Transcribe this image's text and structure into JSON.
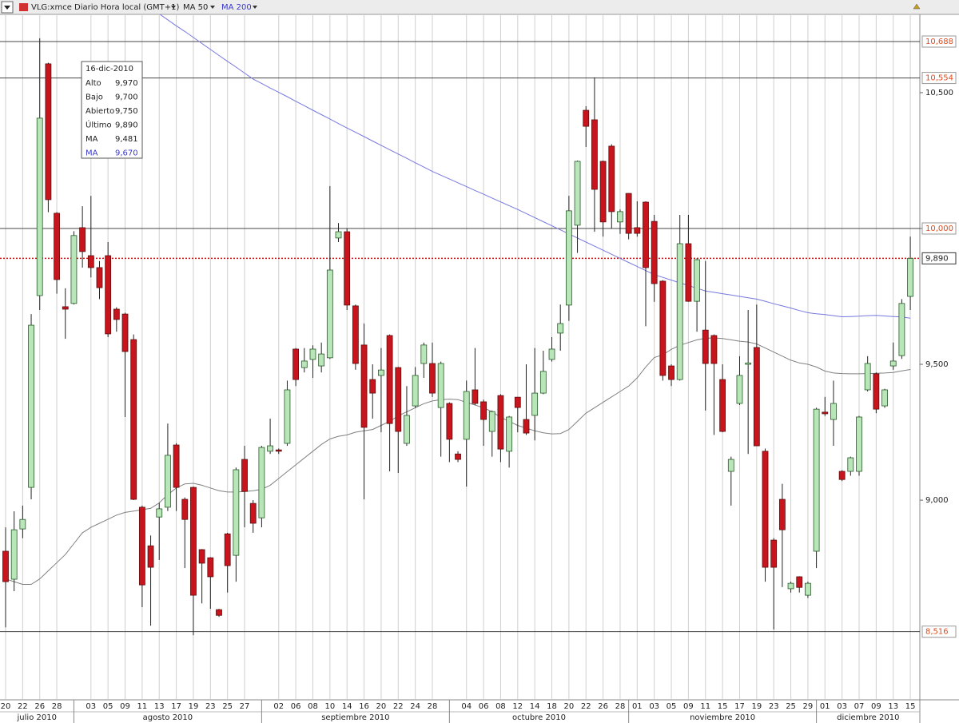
{
  "toolbar": {
    "symbol": "VLG:xmce Diario Hora local (GMT+1)"
  },
  "tooltip": {
    "date": "16-dic-2010",
    "rows": [
      {
        "label": "Alto",
        "value": "9,970"
      },
      {
        "label": "Bajo",
        "value": "9,700"
      },
      {
        "label": "Abierto",
        "value": "9,750"
      },
      {
        "label": "Último",
        "value": "9,890"
      },
      {
        "label": "MA",
        "value": "9,481"
      },
      {
        "label": "MA",
        "value": "9,670",
        "color": "#3a3ac8"
      }
    ]
  },
  "chart_data": {
    "type": "candlestick",
    "months": [
      "julio 2010",
      "agosto 2010",
      "septiembre 2010",
      "octubre 2010",
      "noviembre 2010",
      "diciembre 2010"
    ],
    "categories": [
      "20",
      null,
      "22",
      null,
      "26",
      null,
      "28",
      null,
      null,
      null,
      "03",
      null,
      "05",
      null,
      "09",
      null,
      "11",
      null,
      "13",
      null,
      "17",
      null,
      "19",
      null,
      "23",
      null,
      "25",
      null,
      "27",
      null,
      null,
      null,
      "02",
      null,
      "06",
      null,
      "08",
      null,
      "10",
      null,
      "14",
      null,
      "16",
      null,
      "20",
      null,
      "22",
      null,
      "24",
      null,
      "28",
      null,
      null,
      null,
      "04",
      null,
      "06",
      null,
      "08",
      null,
      "12",
      null,
      "14",
      null,
      "18",
      null,
      "20",
      null,
      "22",
      null,
      "26",
      null,
      "28",
      null,
      "01",
      null,
      "03",
      null,
      "05",
      null,
      "09",
      null,
      "11",
      null,
      "15",
      null,
      "17",
      null,
      "19",
      null,
      "23",
      null,
      "25",
      null,
      "29",
      null,
      "01",
      null,
      "03",
      null,
      "07",
      null,
      "09",
      null,
      "13",
      null,
      "15"
    ],
    "ohlc": [
      [
        8.812,
        8.9,
        8.532,
        8.7
      ],
      [
        8.709,
        8.959,
        8.665,
        8.891
      ],
      [
        8.894,
        8.98,
        8.86,
        8.929
      ],
      [
        9.047,
        9.685,
        9.003,
        9.644
      ],
      [
        9.753,
        10.7,
        9.7,
        10.406
      ],
      [
        10.606,
        10.61,
        10.06,
        10.106
      ],
      [
        10.056,
        10.06,
        9.76,
        9.812
      ],
      [
        9.712,
        9.78,
        9.594,
        9.703
      ],
      [
        9.724,
        9.99,
        9.72,
        9.974
      ],
      [
        10.003,
        10.082,
        9.856,
        9.915
      ],
      [
        9.9,
        10.12,
        9.82,
        9.856
      ],
      [
        9.856,
        9.88,
        9.74,
        9.782
      ],
      [
        9.9,
        9.95,
        9.6,
        9.612
      ],
      [
        9.703,
        9.71,
        9.62,
        9.665
      ],
      [
        9.685,
        9.69,
        9.306,
        9.547
      ],
      [
        9.591,
        9.61,
        9.0,
        9.003
      ],
      [
        8.974,
        8.98,
        8.606,
        8.688
      ],
      [
        8.832,
        8.87,
        8.538,
        8.753
      ],
      [
        8.938,
        8.99,
        8.78,
        8.968
      ],
      [
        8.974,
        9.282,
        8.96,
        9.165
      ],
      [
        9.203,
        9.21,
        8.96,
        9.047
      ],
      [
        9.003,
        9.01,
        8.75,
        8.929
      ],
      [
        9.047,
        9.05,
        8.503,
        8.65
      ],
      [
        8.818,
        8.82,
        8.62,
        8.768
      ],
      [
        8.788,
        8.79,
        8.6,
        8.718
      ],
      [
        8.597,
        8.6,
        8.57,
        8.576
      ],
      [
        8.876,
        8.88,
        8.66,
        8.759
      ],
      [
        8.797,
        9.12,
        8.7,
        9.112
      ],
      [
        9.15,
        9.2,
        8.9,
        9.032
      ],
      [
        8.988,
        9.0,
        8.88,
        8.915
      ],
      [
        8.935,
        9.2,
        8.9,
        9.194
      ],
      [
        9.18,
        9.3,
        9.17,
        9.2
      ],
      [
        9.185,
        9.19,
        9.17,
        9.18
      ],
      [
        9.209,
        9.44,
        9.2,
        9.406
      ],
      [
        9.556,
        9.56,
        9.42,
        9.444
      ],
      [
        9.488,
        9.56,
        9.47,
        9.512
      ],
      [
        9.518,
        9.57,
        9.45,
        9.556
      ],
      [
        9.494,
        9.58,
        9.47,
        9.538
      ],
      [
        9.524,
        10.156,
        9.52,
        9.847
      ],
      [
        9.965,
        10.02,
        9.95,
        9.988
      ],
      [
        9.988,
        10.0,
        9.7,
        9.718
      ],
      [
        9.715,
        9.72,
        9.48,
        9.503
      ],
      [
        9.571,
        9.65,
        9.003,
        9.268
      ],
      [
        9.444,
        9.5,
        9.3,
        9.394
      ],
      [
        9.459,
        9.56,
        9.25,
        9.479
      ],
      [
        9.606,
        9.61,
        9.106,
        9.282
      ],
      [
        9.488,
        9.49,
        9.1,
        9.253
      ],
      [
        9.209,
        9.42,
        9.2,
        9.312
      ],
      [
        9.347,
        9.49,
        9.34,
        9.459
      ],
      [
        9.503,
        9.58,
        9.45,
        9.571
      ],
      [
        9.503,
        9.58,
        9.38,
        9.394
      ],
      [
        9.341,
        9.51,
        9.16,
        9.503
      ],
      [
        9.356,
        9.36,
        9.14,
        9.224
      ],
      [
        9.17,
        9.18,
        9.14,
        9.15
      ],
      [
        9.224,
        9.44,
        9.05,
        9.4
      ],
      [
        9.406,
        9.56,
        9.35,
        9.356
      ],
      [
        9.362,
        9.37,
        9.2,
        9.297
      ],
      [
        9.253,
        9.33,
        9.16,
        9.326
      ],
      [
        9.385,
        9.39,
        9.14,
        9.188
      ],
      [
        9.18,
        9.31,
        9.12,
        9.306
      ],
      [
        9.379,
        9.38,
        9.25,
        9.341
      ],
      [
        9.297,
        9.5,
        9.24,
        9.247
      ],
      [
        9.312,
        9.56,
        9.22,
        9.394
      ],
      [
        9.394,
        9.55,
        9.39,
        9.474
      ],
      [
        9.518,
        9.6,
        9.51,
        9.556
      ],
      [
        9.615,
        9.72,
        9.55,
        9.65
      ],
      [
        9.718,
        10.12,
        9.66,
        10.065
      ],
      [
        10.012,
        10.25,
        9.91,
        10.247
      ],
      [
        10.435,
        10.45,
        10.3,
        10.376
      ],
      [
        10.4,
        10.556,
        9.988,
        10.144
      ],
      [
        10.247,
        10.25,
        9.97,
        10.024
      ],
      [
        10.303,
        10.31,
        10.0,
        10.062
      ],
      [
        10.024,
        10.07,
        9.98,
        10.062
      ],
      [
        10.129,
        10.13,
        9.96,
        9.982
      ],
      [
        10.003,
        10.1,
        9.97,
        9.982
      ],
      [
        10.097,
        10.1,
        9.64,
        9.856
      ],
      [
        10.026,
        10.05,
        9.73,
        9.797
      ],
      [
        9.806,
        9.81,
        9.44,
        9.459
      ],
      [
        9.494,
        9.5,
        9.42,
        9.444
      ],
      [
        9.444,
        10.05,
        9.44,
        9.944
      ],
      [
        9.944,
        10.05,
        9.73,
        9.732
      ],
      [
        9.732,
        9.89,
        9.62,
        9.885
      ],
      [
        9.626,
        9.88,
        9.33,
        9.503
      ],
      [
        9.606,
        9.61,
        9.24,
        9.503
      ],
      [
        9.444,
        9.5,
        9.25,
        9.253
      ],
      [
        9.106,
        9.16,
        8.98,
        9.15
      ],
      [
        9.356,
        9.53,
        9.35,
        9.459
      ],
      [
        9.5,
        9.7,
        9.17,
        9.505
      ],
      [
        9.562,
        9.72,
        9.2,
        9.2
      ],
      [
        9.18,
        9.19,
        8.7,
        8.753
      ],
      [
        8.853,
        8.86,
        8.524,
        8.753
      ],
      [
        9.003,
        9.06,
        8.68,
        8.891
      ],
      [
        8.674,
        8.7,
        8.66,
        8.694
      ],
      [
        8.718,
        8.72,
        8.66,
        8.679
      ],
      [
        8.65,
        8.7,
        8.64,
        8.694
      ],
      [
        8.812,
        9.34,
        8.75,
        9.335
      ],
      [
        9.324,
        9.38,
        9.31,
        9.318
      ],
      [
        9.297,
        9.44,
        9.2,
        9.356
      ],
      [
        9.106,
        9.11,
        9.07,
        9.076
      ],
      [
        9.106,
        9.16,
        9.09,
        9.156
      ],
      [
        9.106,
        9.31,
        9.09,
        9.306
      ],
      [
        9.406,
        9.53,
        9.4,
        9.503
      ],
      [
        9.465,
        9.47,
        9.32,
        9.335
      ],
      [
        9.347,
        9.41,
        9.34,
        9.406
      ],
      [
        9.494,
        9.58,
        9.48,
        9.512
      ],
      [
        9.532,
        9.74,
        9.52,
        9.724
      ],
      [
        9.75,
        9.97,
        9.7,
        9.89
      ]
    ],
    "up_color": "#b9e6b9",
    "down_color": "#c8141c",
    "series": [
      {
        "name": "MA 50",
        "color": "#808080",
        "values": [
          8.71,
          8.7,
          8.69,
          8.69,
          8.71,
          8.74,
          8.77,
          8.8,
          8.84,
          8.88,
          8.9,
          8.915,
          8.93,
          8.945,
          8.955,
          8.96,
          8.965,
          8.97,
          8.99,
          9.02,
          9.045,
          9.06,
          9.062,
          9.055,
          9.045,
          9.035,
          9.03,
          9.03,
          9.032,
          9.035,
          9.04,
          9.055,
          9.08,
          9.105,
          9.13,
          9.155,
          9.18,
          9.205,
          9.225,
          9.235,
          9.24,
          9.25,
          9.255,
          9.26,
          9.275,
          9.29,
          9.31,
          9.325,
          9.34,
          9.355,
          9.365,
          9.37,
          9.372,
          9.37,
          9.36,
          9.35,
          9.34,
          9.325,
          9.305,
          9.29,
          9.275,
          9.265,
          9.255,
          9.248,
          9.244,
          9.245,
          9.26,
          9.29,
          9.32,
          9.34,
          9.36,
          9.38,
          9.4,
          9.42,
          9.45,
          9.49,
          9.525,
          9.535,
          9.555,
          9.57,
          9.58,
          9.59,
          9.596,
          9.597,
          9.595,
          9.59,
          9.585,
          9.582,
          9.575,
          9.56,
          9.545,
          9.53,
          9.515,
          9.505,
          9.5,
          9.49,
          9.475,
          9.468,
          9.466,
          9.465,
          9.465,
          9.466,
          9.467,
          9.468,
          9.47,
          9.476,
          9.481
        ]
      },
      {
        "name": "MA 200",
        "color": "#7878e0",
        "values": [
          null,
          null,
          null,
          null,
          null,
          null,
          null,
          null,
          null,
          null,
          null,
          null,
          null,
          null,
          null,
          null,
          null,
          null,
          10.79,
          10.768,
          10.746,
          10.725,
          10.703,
          10.681,
          10.659,
          10.637,
          10.615,
          10.594,
          10.572,
          10.55,
          10.534,
          10.517,
          10.501,
          10.485,
          10.468,
          10.452,
          10.435,
          10.419,
          10.403,
          10.386,
          10.37,
          10.354,
          10.338,
          10.322,
          10.306,
          10.29,
          10.274,
          10.258,
          10.242,
          10.226,
          10.21,
          10.196,
          10.182,
          10.168,
          10.154,
          10.14,
          10.126,
          10.112,
          10.098,
          10.084,
          10.07,
          10.055,
          10.04,
          10.025,
          10.01,
          9.995,
          9.98,
          9.965,
          9.95,
          9.935,
          9.92,
          9.905,
          9.89,
          9.875,
          9.86,
          9.845,
          9.83,
          9.82,
          9.81,
          9.8,
          9.79,
          9.78,
          9.77,
          9.765,
          9.76,
          9.755,
          9.75,
          9.745,
          9.74,
          9.732,
          9.723,
          9.715,
          9.707,
          9.698,
          9.69,
          9.686,
          9.683,
          9.679,
          9.675,
          9.676,
          9.677,
          9.679,
          9.68,
          9.678,
          9.676,
          9.674,
          9.67
        ]
      }
    ],
    "ylim": [
      8.268,
      10.788
    ],
    "yticks": [
      {
        "value": 9.0,
        "label": "9,000"
      },
      {
        "value": 9.5,
        "label": "9,500"
      },
      {
        "value": 10.0,
        "label": "10,000"
      },
      {
        "value": 10.5,
        "label": "10,500"
      }
    ],
    "levels": [
      {
        "value": 10.688,
        "label": "10,688"
      },
      {
        "value": 10.554,
        "label": "10,554"
      },
      {
        "value": 10.0,
        "label": "10,000"
      },
      {
        "value": 8.516,
        "label": "8,516"
      }
    ],
    "last": {
      "value": 9.89,
      "label": "9,890",
      "color": "#d01010"
    },
    "grid": true
  }
}
